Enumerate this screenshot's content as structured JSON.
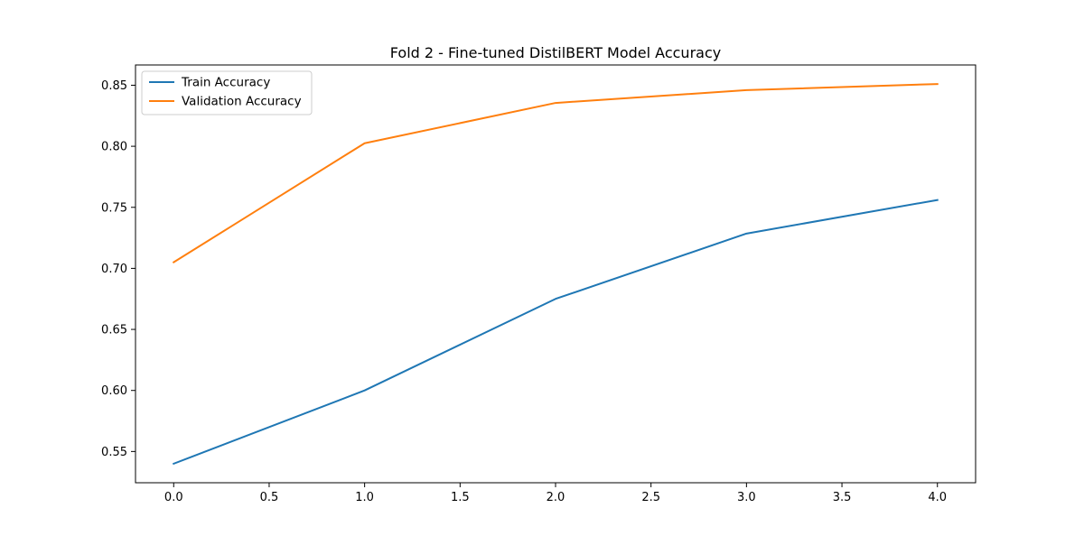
{
  "chart_data": {
    "type": "line",
    "title": "Fold 2 - Fine-tuned DistilBERT Model Accuracy",
    "xlabel": "",
    "ylabel": "",
    "x": [
      0,
      1,
      2,
      3,
      4
    ],
    "series": [
      {
        "name": "Train Accuracy",
        "color": "#1f77b4",
        "values": [
          0.54,
          0.6,
          0.675,
          0.7285,
          0.756
        ]
      },
      {
        "name": "Validation Accuracy",
        "color": "#ff7f0e",
        "values": [
          0.705,
          0.8025,
          0.8355,
          0.846,
          0.851
        ]
      }
    ],
    "xlim": [
      -0.2,
      4.2
    ],
    "ylim": [
      0.5244,
      0.8666
    ],
    "xticks": [
      "0.0",
      "0.5",
      "1.0",
      "1.5",
      "2.0",
      "2.5",
      "3.0",
      "3.5",
      "4.0"
    ],
    "yticks": [
      "0.55",
      "0.60",
      "0.65",
      "0.70",
      "0.75",
      "0.80",
      "0.85"
    ],
    "grid": false,
    "legend_position": "upper-left"
  }
}
